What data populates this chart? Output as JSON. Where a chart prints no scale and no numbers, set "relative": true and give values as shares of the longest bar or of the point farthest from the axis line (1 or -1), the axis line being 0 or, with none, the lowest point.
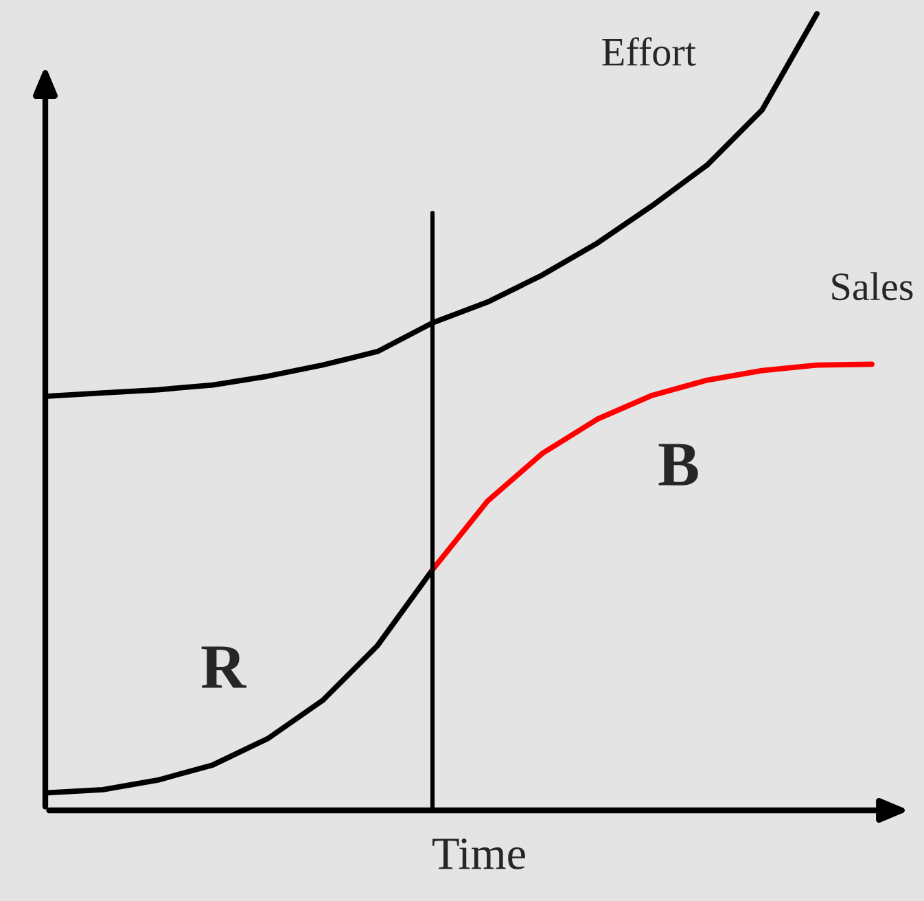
{
  "chart_data": {
    "type": "line",
    "relative": true,
    "xlabel": "Time",
    "categories": [
      null,
      null,
      null,
      null,
      null,
      null,
      null,
      null,
      null,
      null,
      null,
      null,
      null,
      null,
      null,
      null
    ],
    "series": [
      {
        "name": "Effort",
        "color": "#000000",
        "values": [
          0.52,
          0.524,
          0.528,
          0.534,
          0.545,
          0.559,
          0.576,
          0.612,
          0.638,
          0.672,
          0.712,
          0.759,
          0.81,
          0.879,
          1.0,
          null
        ]
      },
      {
        "color": "#000000",
        "values": [
          0.022,
          0.026,
          0.038,
          0.057,
          0.09,
          0.138,
          0.207,
          0.302,
          null,
          null,
          null,
          null,
          null,
          null,
          null,
          null
        ]
      },
      {
        "name": "Sales",
        "color": "#ff0000",
        "values": [
          null,
          null,
          null,
          null,
          null,
          null,
          null,
          0.302,
          0.388,
          0.448,
          0.491,
          0.521,
          0.54,
          0.552,
          0.559,
          0.56
        ]
      }
    ],
    "annotations": [
      "R",
      "B"
    ],
    "marker": "none",
    "line_style": "solid"
  }
}
